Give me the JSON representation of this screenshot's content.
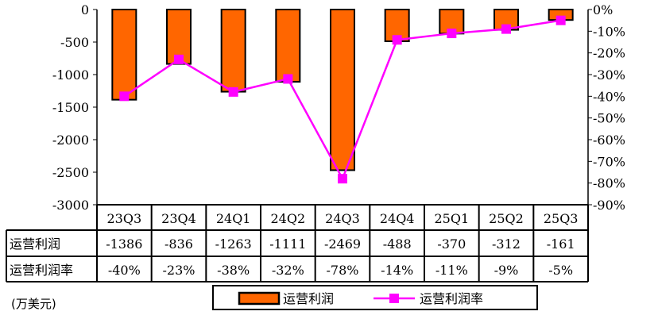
{
  "chart_data": {
    "type": "bar+line",
    "categories": [
      "23Q3",
      "23Q4",
      "24Q1",
      "24Q2",
      "24Q3",
      "24Q4",
      "25Q1",
      "25Q2",
      "25Q3"
    ],
    "series": [
      {
        "name": "运营利润",
        "type": "bar",
        "axis": "left",
        "color": "#FF6600",
        "values": [
          -1386,
          -836,
          -1263,
          -1111,
          -2469,
          -488,
          -370,
          -312,
          -161
        ],
        "labels": [
          "-1386",
          "-836",
          "-1263",
          "-1111",
          "-2469",
          "-488",
          "-370",
          "-312",
          "-161"
        ]
      },
      {
        "name": "运营利润率",
        "type": "line",
        "axis": "right",
        "color": "#FF00FF",
        "values": [
          -40,
          -23,
          -38,
          -32,
          -78,
          -14,
          -11,
          -9,
          -5
        ],
        "labels": [
          "-40%",
          "-23%",
          "-38%",
          "-32%",
          "-78%",
          "-14%",
          "-11%",
          "-9%",
          "-5%"
        ]
      }
    ],
    "left_axis": {
      "ylim": [
        -3000,
        0
      ],
      "ticks": [
        "0",
        "-500",
        "-1000",
        "-1500",
        "-2000",
        "-2500",
        "-3000"
      ]
    },
    "right_axis": {
      "ylim": [
        -90,
        0
      ],
      "ticks": [
        "0%",
        "-10%",
        "-20%",
        "-30%",
        "-40%",
        "-50%",
        "-60%",
        "-70%",
        "-80%",
        "-90%"
      ]
    },
    "grid": false,
    "legend": "bottom",
    "unit_note": "(万美元)"
  }
}
